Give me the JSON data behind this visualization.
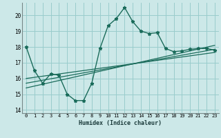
{
  "title": "",
  "xlabel": "Humidex (Indice chaleur)",
  "bg_color": "#cce8e8",
  "grid_color": "#99cccc",
  "line_color": "#1a6b5a",
  "xlim": [
    -0.5,
    23.5
  ],
  "ylim": [
    13.8,
    20.8
  ],
  "xticks": [
    0,
    1,
    2,
    3,
    4,
    5,
    6,
    7,
    8,
    9,
    10,
    11,
    12,
    13,
    14,
    15,
    16,
    17,
    18,
    19,
    20,
    21,
    22,
    23
  ],
  "yticks": [
    14,
    15,
    16,
    17,
    18,
    19,
    20
  ],
  "main_line_x": [
    0,
    1,
    2,
    3,
    4,
    5,
    6,
    7,
    8,
    9,
    10,
    11,
    12,
    13,
    14,
    15,
    16,
    17,
    18,
    19,
    20,
    21,
    22,
    23
  ],
  "main_line_y": [
    18.0,
    16.5,
    15.7,
    16.3,
    16.2,
    15.0,
    14.6,
    14.6,
    15.7,
    17.9,
    19.35,
    19.8,
    20.5,
    19.6,
    19.0,
    18.85,
    18.9,
    17.9,
    17.7,
    17.75,
    17.85,
    17.9,
    17.9,
    17.8
  ],
  "trend_lines": [
    {
      "x": [
        0,
        23
      ],
      "y": [
        15.4,
        18.1
      ]
    },
    {
      "x": [
        0,
        23
      ],
      "y": [
        15.7,
        17.85
      ]
    },
    {
      "x": [
        0,
        23
      ],
      "y": [
        16.0,
        17.65
      ]
    }
  ]
}
